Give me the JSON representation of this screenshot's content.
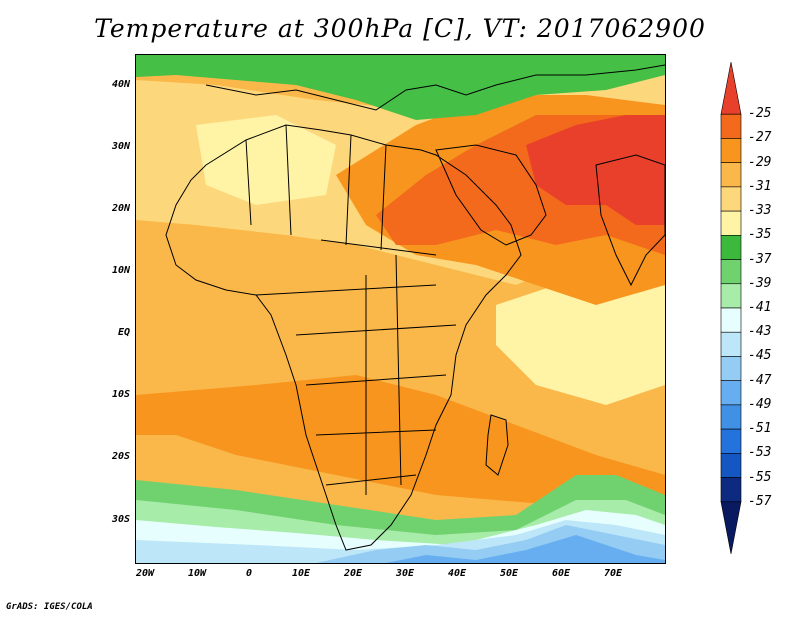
{
  "title": "Temperature at 300hPa [C], VT: 2017062900",
  "footer": "GrADS: IGES/COLA",
  "axes": {
    "lat_labels": [
      "40N",
      "30N",
      "20N",
      "10N",
      "EQ",
      "10S",
      "20S",
      "30S"
    ],
    "lon_labels": [
      "20W",
      "10W",
      "0",
      "10E",
      "20E",
      "30E",
      "40E",
      "50E",
      "60E",
      "70E"
    ]
  },
  "colorbar": {
    "labels": [
      "-25",
      "-27",
      "-29",
      "-31",
      "-33",
      "-35",
      "-37",
      "-39",
      "-41",
      "-43",
      "-45",
      "-47",
      "-49",
      "-51",
      "-53",
      "-55",
      "-57"
    ],
    "colors": [
      "#e8402a",
      "#f36a1c",
      "#f7951e",
      "#fab84a",
      "#fdd77c",
      "#fff3a6",
      "#3cb83c",
      "#6fd26f",
      "#a8ecaa",
      "#e6fffe",
      "#bde6f8",
      "#94ccf4",
      "#66aef0",
      "#4090e6",
      "#2472dc",
      "#1557c2",
      "#0d2a80",
      "#0a1a60"
    ]
  },
  "map": {
    "field_colors": {
      "green_north": "#45bf45",
      "light_yellow": "#fdd77c",
      "yellow": "#fab84a",
      "orange": "#f7951e",
      "dark_orange": "#f36a1c",
      "red": "#e8402a",
      "pale": "#fff3a6",
      "south_green": "#6fd26f",
      "south_lightgreen": "#a8ecaa",
      "south_white": "#e6fffe",
      "south_blue1": "#bde6f8",
      "south_blue2": "#94ccf4",
      "south_blue3": "#66aef0"
    }
  }
}
